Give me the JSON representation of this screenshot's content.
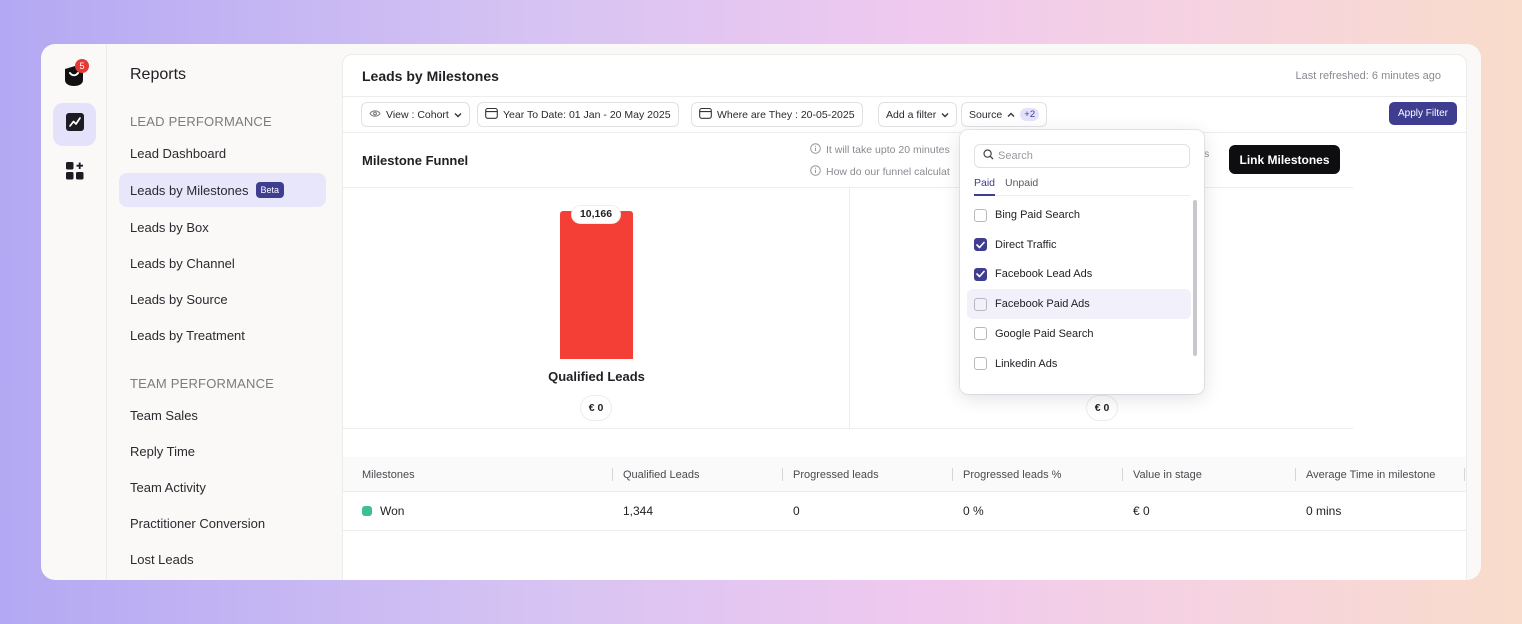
{
  "rail": {
    "notification_count": "5"
  },
  "sidebar": {
    "title": "Reports",
    "section_lead": "LEAD PERFORMANCE",
    "section_team": "TEAM PERFORMANCE",
    "lead_items": [
      "Lead Dashboard",
      "Leads by Milestones",
      "Leads by Box",
      "Leads by Channel",
      "Leads by Source",
      "Leads by Treatment"
    ],
    "beta_badge": "Beta",
    "team_items": [
      "Team Sales",
      "Reply Time",
      "Team Activity",
      "Practitioner Conversion",
      "Lost Leads"
    ]
  },
  "header": {
    "title": "Leads by Milestones",
    "last_refreshed": "Last refreshed: 6 minutes ago"
  },
  "filters": {
    "view": "View : Cohort",
    "date_range": "Year To Date: 01 Jan - 20 May 2025",
    "where_are_they": "Where are They : 20-05-2025",
    "add_filter": "Add a filter",
    "source": "Source",
    "source_extra": "+2",
    "apply": "Apply Filter"
  },
  "funnel": {
    "title": "Milestone Funnel",
    "info_1": "It will take upto 20 minutes",
    "info_2": "How do our funnel calculat",
    "info_tail": "s",
    "link_button": "Link Milestones",
    "bars": [
      {
        "label": "Qualified Leads",
        "value": "10,166",
        "value_eur": "€ 0",
        "fill_fraction": 1.0,
        "color": "#f43f37"
      },
      {
        "value_eur": "€ 0"
      }
    ]
  },
  "table": {
    "headers": [
      "Milestones",
      "Qualified Leads",
      "Progressed leads",
      "Progressed leads %",
      "Value in stage",
      "Average Time in milestone"
    ],
    "rows": [
      {
        "milestone": "Won",
        "qualified": "1,344",
        "progressed": "0",
        "progressed_pct": "0 %",
        "value": "€ 0",
        "avg_time": "0 mins",
        "color": "#3fbf8f"
      }
    ]
  },
  "source_dropdown": {
    "search_placeholder": "Search",
    "tabs": [
      "Paid",
      "Unpaid"
    ],
    "active_tab": "Paid",
    "items": [
      {
        "label": "Bing Paid Search",
        "checked": false
      },
      {
        "label": "Direct Traffic",
        "checked": true
      },
      {
        "label": "Facebook Lead Ads",
        "checked": true
      },
      {
        "label": "Facebook Paid Ads",
        "checked": false
      },
      {
        "label": "Google Paid Search",
        "checked": false
      },
      {
        "label": "Linkedin Ads",
        "checked": false
      }
    ]
  }
}
